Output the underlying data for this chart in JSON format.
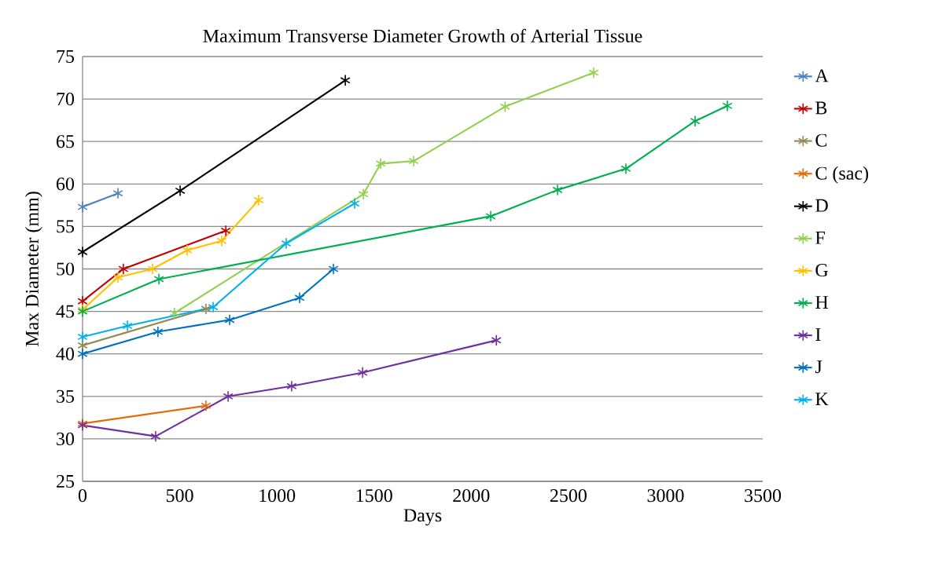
{
  "chart_data": {
    "type": "line",
    "title": "Maximum Transverse Diameter Growth of Arterial Tissue",
    "xlabel": "Days",
    "ylabel": "Max Diameter (mm)",
    "xlim": [
      0,
      3500
    ],
    "xticks": [
      0,
      500,
      1000,
      1500,
      2000,
      2500,
      3000,
      3500
    ],
    "ylim": [
      25,
      75
    ],
    "yticks": [
      25,
      30,
      35,
      40,
      45,
      50,
      55,
      60,
      65,
      70,
      75
    ],
    "grid": "y",
    "legend": "right",
    "marker": "cross",
    "line_style": "solid",
    "series": [
      {
        "name": "A",
        "color": "#4f81bd",
        "x": [
          0,
          182
        ],
        "values": [
          57.3,
          58.9
        ]
      },
      {
        "name": "B",
        "color": "#c00000",
        "x": [
          0,
          210,
          737
        ],
        "values": [
          46.2,
          50.0,
          54.5
        ]
      },
      {
        "name": "C",
        "color": "#948a54",
        "x": [
          0,
          635
        ],
        "values": [
          41.0,
          45.3
        ]
      },
      {
        "name": "C (sac)",
        "color": "#e36c09",
        "x": [
          0,
          635
        ],
        "values": [
          31.8,
          33.9
        ]
      },
      {
        "name": "D",
        "color": "#000000",
        "x": [
          0,
          502,
          1352
        ],
        "values": [
          52.0,
          59.2,
          72.2
        ]
      },
      {
        "name": "F",
        "color": "#92d050",
        "x": [
          473,
          1445,
          1534,
          1704,
          2174,
          2630
        ],
        "values": [
          44.8,
          58.8,
          62.4,
          62.7,
          69.1,
          73.1
        ]
      },
      {
        "name": "G",
        "color": "#ffc000",
        "x": [
          0,
          182,
          360,
          538,
          716,
          906
        ],
        "values": [
          45.2,
          49.0,
          50.0,
          52.2,
          53.3,
          58.1
        ]
      },
      {
        "name": "H",
        "color": "#00b050",
        "x": [
          0,
          393,
          2100,
          2444,
          2796,
          3152,
          3318
        ],
        "values": [
          45.0,
          48.8,
          56.2,
          59.3,
          61.8,
          67.4,
          69.2
        ]
      },
      {
        "name": "I",
        "color": "#7030a0",
        "x": [
          0,
          376,
          749,
          1076,
          1441,
          2129
        ],
        "values": [
          31.6,
          30.3,
          35.0,
          36.2,
          37.8,
          41.6
        ]
      },
      {
        "name": "J",
        "color": "#0070c0",
        "x": [
          0,
          388,
          757,
          1117,
          1291
        ],
        "values": [
          40.0,
          42.6,
          44.0,
          46.6,
          50.0
        ]
      },
      {
        "name": "K",
        "color": "#00b0f0",
        "x": [
          0,
          231,
          672,
          1048,
          1400
        ],
        "values": [
          42.0,
          43.3,
          45.5,
          53.0,
          57.7
        ]
      }
    ]
  }
}
